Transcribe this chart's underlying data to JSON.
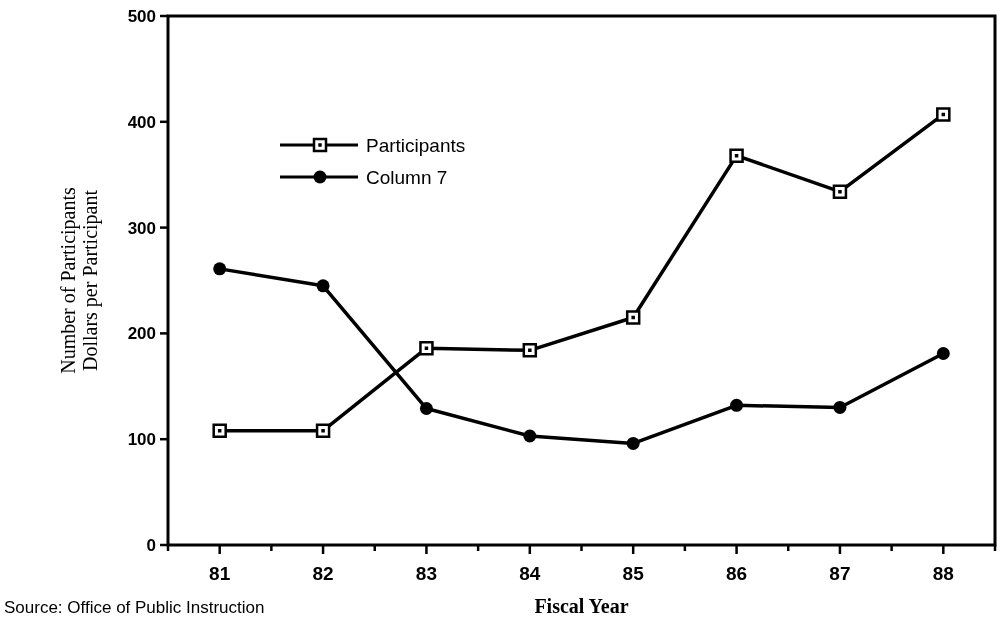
{
  "chart_data": {
    "type": "line",
    "xlabel": "Fiscal Year",
    "ylabel": "Number of Participants\nDollars per Participant",
    "categories": [
      "81",
      "82",
      "83",
      "84",
      "85",
      "86",
      "87",
      "88"
    ],
    "series": [
      {
        "name": "Participants",
        "color": "#000000",
        "marker": "square",
        "values": [
          108,
          108,
          186,
          184,
          215,
          368,
          334,
          407
        ]
      },
      {
        "name": "Column 7",
        "color": "#000000",
        "marker": "circle",
        "values": [
          261,
          245,
          129,
          103,
          96,
          132,
          130,
          181
        ]
      }
    ],
    "ylim": [
      0,
      500
    ],
    "yticks": [
      0,
      100,
      200,
      300,
      400,
      500
    ],
    "grid": false,
    "legend": "top left",
    "line_style": "solid",
    "annotations": [
      "Source: Office of Public Instruction"
    ]
  }
}
